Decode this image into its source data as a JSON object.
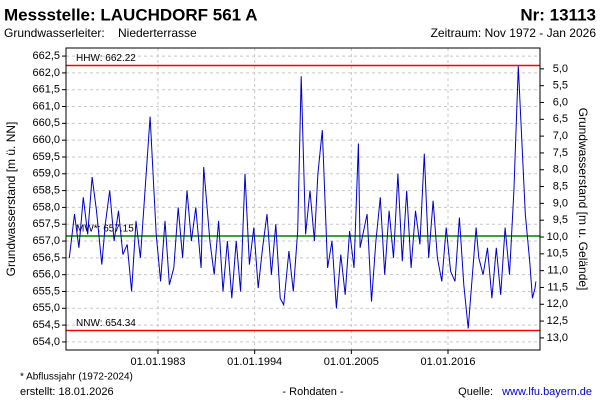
{
  "chart_data": {
    "type": "line",
    "title": "Messstelle: LAUCHDORF 561 A",
    "number": "Nr: 13113",
    "aquifer_label": "Grundwasserleiter:",
    "aquifer": "Niederterrasse",
    "period": "Zeitraum: Nov 1972 - Jan 2026",
    "ylabel": "Grundwasserstand [m ü. NN]",
    "y2label": "Grundwasserstand [m u. Gelände]",
    "footnote": "* Abflussjahr (1972-2024)",
    "created": "erstellt:  18.01.2026",
    "raw_note": "- Rohdaten -",
    "source_label": "Quelle:",
    "source": "www.lfu.bayern.de",
    "grid": true,
    "xlim": [
      1972.53,
      2026.47
    ],
    "xticks": [
      {
        "value": 1983,
        "label": "01.01.1983"
      },
      {
        "value": 1994,
        "label": "01.01.1994"
      },
      {
        "value": 2005,
        "label": "01.01.2005"
      },
      {
        "value": 2016,
        "label": "01.01.2016"
      }
    ],
    "ylim": [
      653.76,
      662.74
    ],
    "yticks": [
      {
        "value": 654.0,
        "label": "654,0"
      },
      {
        "value": 654.5,
        "label": "654,5"
      },
      {
        "value": 655.0,
        "label": "655,0"
      },
      {
        "value": 655.5,
        "label": "655,5"
      },
      {
        "value": 656.0,
        "label": "656,0"
      },
      {
        "value": 656.5,
        "label": "656,5"
      },
      {
        "value": 657.0,
        "label": "657,0"
      },
      {
        "value": 657.5,
        "label": "657,5"
      },
      {
        "value": 658.0,
        "label": "658,0"
      },
      {
        "value": 658.5,
        "label": "658,5"
      },
      {
        "value": 659.0,
        "label": "659,0"
      },
      {
        "value": 659.5,
        "label": "659,5"
      },
      {
        "value": 660.0,
        "label": "660,0"
      },
      {
        "value": 660.5,
        "label": "660,5"
      },
      {
        "value": 661.0,
        "label": "661,0"
      },
      {
        "value": 661.5,
        "label": "661,5"
      },
      {
        "value": 662.0,
        "label": "662,0"
      },
      {
        "value": 662.5,
        "label": "662,5"
      }
    ],
    "y2lim": [
      13.36,
      4.38
    ],
    "y2ticks": [
      {
        "value": 5.0,
        "label": "5,0"
      },
      {
        "value": 5.5,
        "label": "5,5"
      },
      {
        "value": 6.0,
        "label": "6,0"
      },
      {
        "value": 6.5,
        "label": "6,5"
      },
      {
        "value": 7.0,
        "label": "7,0"
      },
      {
        "value": 7.5,
        "label": "7,5"
      },
      {
        "value": 8.0,
        "label": "8,0"
      },
      {
        "value": 8.5,
        "label": "8,5"
      },
      {
        "value": 9.0,
        "label": "9,0"
      },
      {
        "value": 9.5,
        "label": "9,5"
      },
      {
        "value": 10.0,
        "label": "10,0"
      },
      {
        "value": 10.5,
        "label": "10,5"
      },
      {
        "value": 11.0,
        "label": "11,0"
      },
      {
        "value": 11.5,
        "label": "11,5"
      },
      {
        "value": 12.0,
        "label": "12,0"
      },
      {
        "value": 12.5,
        "label": "12,5"
      },
      {
        "value": 13.0,
        "label": "13,0"
      }
    ],
    "reference_lines": [
      {
        "label": "HHW: 662.22",
        "value": 662.22,
        "color": "#ff0000"
      },
      {
        "label": "MW*: 657.15",
        "value": 657.15,
        "color": "#008000"
      },
      {
        "label": "NNW: 654.34",
        "value": 654.34,
        "color": "#ff0000"
      }
    ],
    "x": [
      1972.9,
      1973.5,
      1974,
      1974.5,
      1975,
      1975.5,
      1976,
      1976.6,
      1977,
      1977.5,
      1978,
      1978.5,
      1979,
      1979.5,
      1980,
      1980.5,
      1981,
      1982.1,
      1982.8,
      1983.3,
      1983.8,
      1984.3,
      1984.8,
      1985.3,
      1985.8,
      1986.3,
      1986.8,
      1987.3,
      1987.9,
      1988.2,
      1988.9,
      1989.4,
      1989.9,
      1990.4,
      1990.9,
      1991.4,
      1991.9,
      1992.4,
      1992.9,
      1993.4,
      1993.9,
      1994.4,
      1994.9,
      1995.4,
      1995.9,
      1996.4,
      1996.9,
      1997.3,
      1997.9,
      1998.4,
      1998.9,
      1999.3,
      1999.8,
      2000.3,
      2000.8,
      2001.2,
      2001.7,
      2002.3,
      2002.8,
      2003.3,
      2003.8,
      2004.3,
      2004.8,
      2005.3,
      2005.8,
      2006.0,
      2006.8,
      2007.3,
      2007.8,
      2008.3,
      2008.8,
      2009.3,
      2009.8,
      2010.3,
      2010.8,
      2011.3,
      2011.8,
      2012.3,
      2012.8,
      2013.3,
      2013.8,
      2014.3,
      2014.8,
      2015.3,
      2015.8,
      2016.3,
      2016.8,
      2017.3,
      2017.8,
      2018.3,
      2019.2,
      2019.5,
      2020.0,
      2020.5,
      2021.0,
      2021.5,
      2022.0,
      2022.5,
      2023.0,
      2023.5,
      2024.0,
      2024.4,
      2024.8,
      2025.3,
      2025.6,
      2025.9,
      2026.0
    ],
    "series": [
      {
        "name": "Grundwasserstand",
        "color": "#0000cc",
        "values": [
          656.5,
          657.8,
          656.8,
          658.3,
          657.2,
          658.9,
          657.9,
          656.3,
          657.5,
          658.5,
          657.0,
          657.9,
          656.6,
          656.9,
          655.5,
          657.6,
          656.5,
          660.7,
          657.2,
          655.8,
          657.6,
          655.7,
          656.2,
          658.0,
          656.5,
          658.5,
          657.0,
          658.0,
          656.2,
          659.2,
          657.0,
          656.0,
          657.6,
          655.5,
          657.0,
          655.3,
          657.0,
          655.5,
          659.0,
          656.3,
          657.4,
          655.6,
          656.8,
          657.8,
          656.0,
          657.5,
          655.3,
          655.1,
          656.7,
          655.5,
          657.3,
          661.9,
          657.2,
          658.5,
          657.0,
          659.0,
          660.3,
          656.2,
          657.0,
          655.0,
          656.6,
          655.4,
          657.3,
          656.2,
          659.9,
          656.8,
          657.8,
          655.2,
          657.0,
          658.3,
          656.0,
          657.9,
          656.5,
          659.0,
          656.4,
          658.5,
          656.2,
          657.9,
          656.9,
          659.6,
          656.5,
          658.2,
          656.5,
          655.8,
          657.4,
          656.1,
          655.8,
          657.7,
          655.7,
          654.4,
          657.4,
          656.5,
          656.0,
          656.8,
          655.3,
          656.8,
          655.4,
          657.4,
          656.0,
          658.5,
          662.2,
          660.0,
          657.8,
          656.4,
          655.3,
          655.6,
          655.8
        ]
      }
    ]
  }
}
